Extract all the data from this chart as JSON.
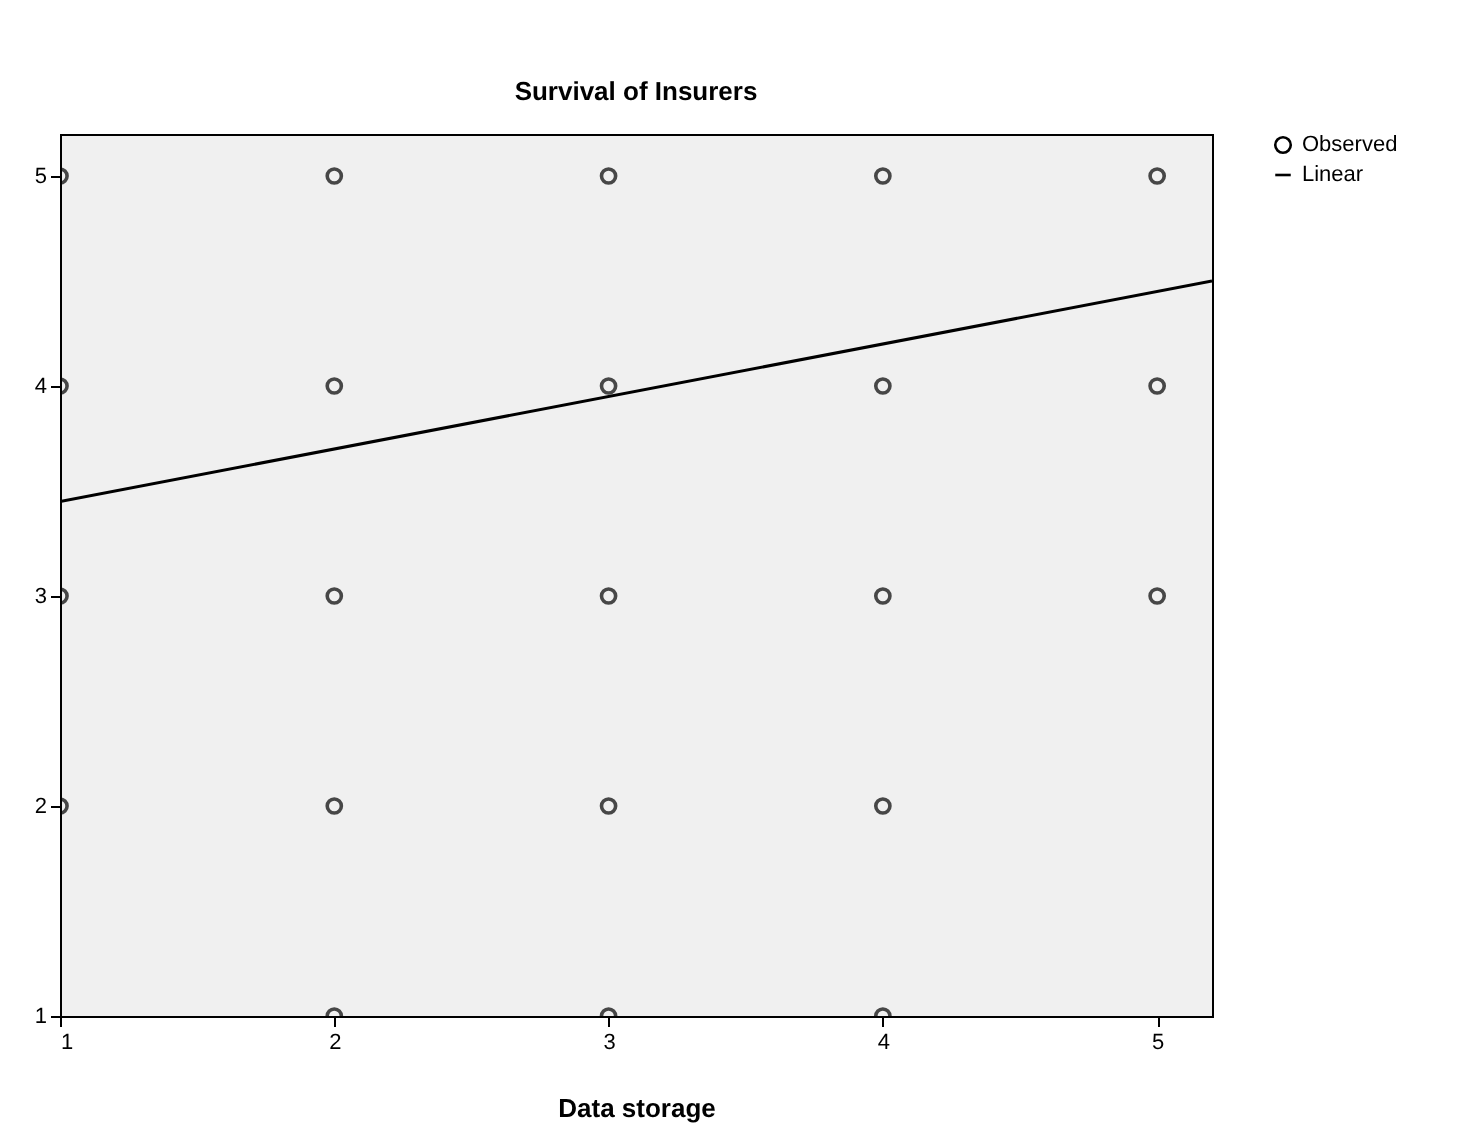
{
  "chart_data": {
    "type": "scatter",
    "title": "Survival of Insurers",
    "xlabel": "Data storage",
    "xlim": [
      1,
      5.2
    ],
    "xticks": [
      1,
      2,
      3,
      4,
      5
    ],
    "ylim": [
      1,
      5.2
    ],
    "yticks": [
      1,
      2,
      3,
      4,
      5
    ],
    "legend": "top right",
    "series": [
      {
        "name": "Observed",
        "color": "#000000",
        "marker": "circle",
        "x": [
          1,
          1,
          1,
          1,
          2,
          2,
          2,
          2,
          2,
          3,
          3,
          3,
          3,
          3,
          4,
          4,
          4,
          4,
          4,
          5,
          5,
          5
        ],
        "values": [
          5,
          4,
          3,
          2,
          5,
          4,
          3,
          2,
          1,
          5,
          4,
          3,
          2,
          1,
          5,
          4,
          3,
          2,
          1,
          5,
          4,
          3
        ]
      },
      {
        "name": "Linear",
        "type": "line",
        "color": "#000000",
        "marker": "none",
        "line_style": "solid",
        "x": [
          1,
          5.2
        ],
        "values": [
          3.45,
          4.5
        ]
      }
    ]
  }
}
